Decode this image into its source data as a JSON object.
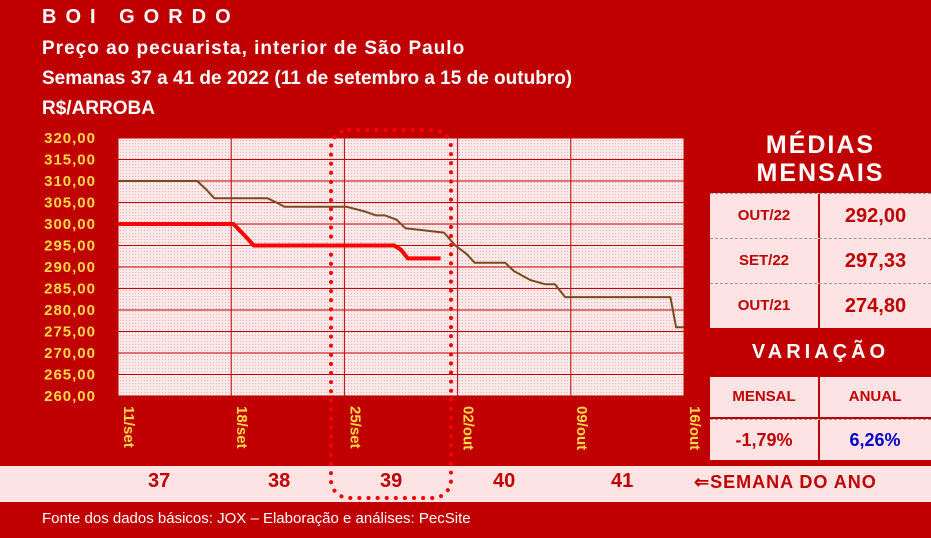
{
  "header": {
    "title": "BOI GORDO",
    "subtitle": "Preço ao pecuarista, interior de São Paulo",
    "period": "Semanas 37 a 41 de 2022 (11 de setembro a 15 de outubro)",
    "unit": "R$/ARROBA"
  },
  "chart_data": {
    "type": "line",
    "ylim": [
      260,
      320
    ],
    "ytick_labels": [
      "320,00",
      "315,00",
      "310,00",
      "305,00",
      "300,00",
      "295,00",
      "290,00",
      "285,00",
      "280,00",
      "275,00",
      "270,00",
      "265,00",
      "260,00"
    ],
    "x_labels": [
      "11/set",
      "18/set",
      "25/set",
      "02/out",
      "09/out",
      "16/out"
    ],
    "grid": true,
    "series": [
      {
        "color": "#7a4a1f",
        "x": [
          0,
          7.0,
          7.8,
          8.5,
          13.2,
          14.0,
          14.7,
          20.2,
          21.7,
          22.8,
          23.6,
          24.6,
          25.4,
          28.8,
          29.8,
          30.8,
          31.5,
          34.2,
          35.0,
          36.4,
          37.7,
          38.6,
          39.5,
          41.0,
          42.0,
          48.8,
          49.3,
          50.0
        ],
        "y": [
          310,
          310,
          308,
          306,
          306,
          305,
          304,
          304,
          303,
          302,
          302,
          301,
          299,
          298,
          295,
          293,
          291,
          291,
          289,
          287,
          286,
          286,
          283,
          283,
          283,
          283,
          276,
          276
        ]
      },
      {
        "color": "#ff0000",
        "x": [
          0,
          10.2,
          11.3,
          12.0,
          24.4,
          25.0,
          25.6,
          28.5
        ],
        "y": [
          300,
          300,
          297,
          295,
          295,
          294,
          292,
          292
        ]
      }
    ]
  },
  "sidebar": {
    "monthly_title_1": "MÉDIAS",
    "monthly_title_2": "MENSAIS",
    "monthly": [
      {
        "label": "OUT/22",
        "value": "292,00"
      },
      {
        "label": "SET/22",
        "value": "297,33"
      },
      {
        "label": "OUT/21",
        "value": "274,80"
      }
    ],
    "variation_title": "VARIAÇÃO",
    "variation_labels": {
      "monthly": "MENSAL",
      "annual": "ANUAL"
    },
    "variation_values": {
      "monthly": "-1,79%",
      "annual": "6,26%"
    },
    "colors": {
      "negative": "#c00000",
      "positive": "#0000cc"
    }
  },
  "weeks": {
    "numbers": [
      "37",
      "38",
      "39",
      "40",
      "41"
    ],
    "label": "⇐SEMANA DO ANO"
  },
  "footer": "Fonte dos dados básicos: JOX – Elaboração e análises: PecSite"
}
